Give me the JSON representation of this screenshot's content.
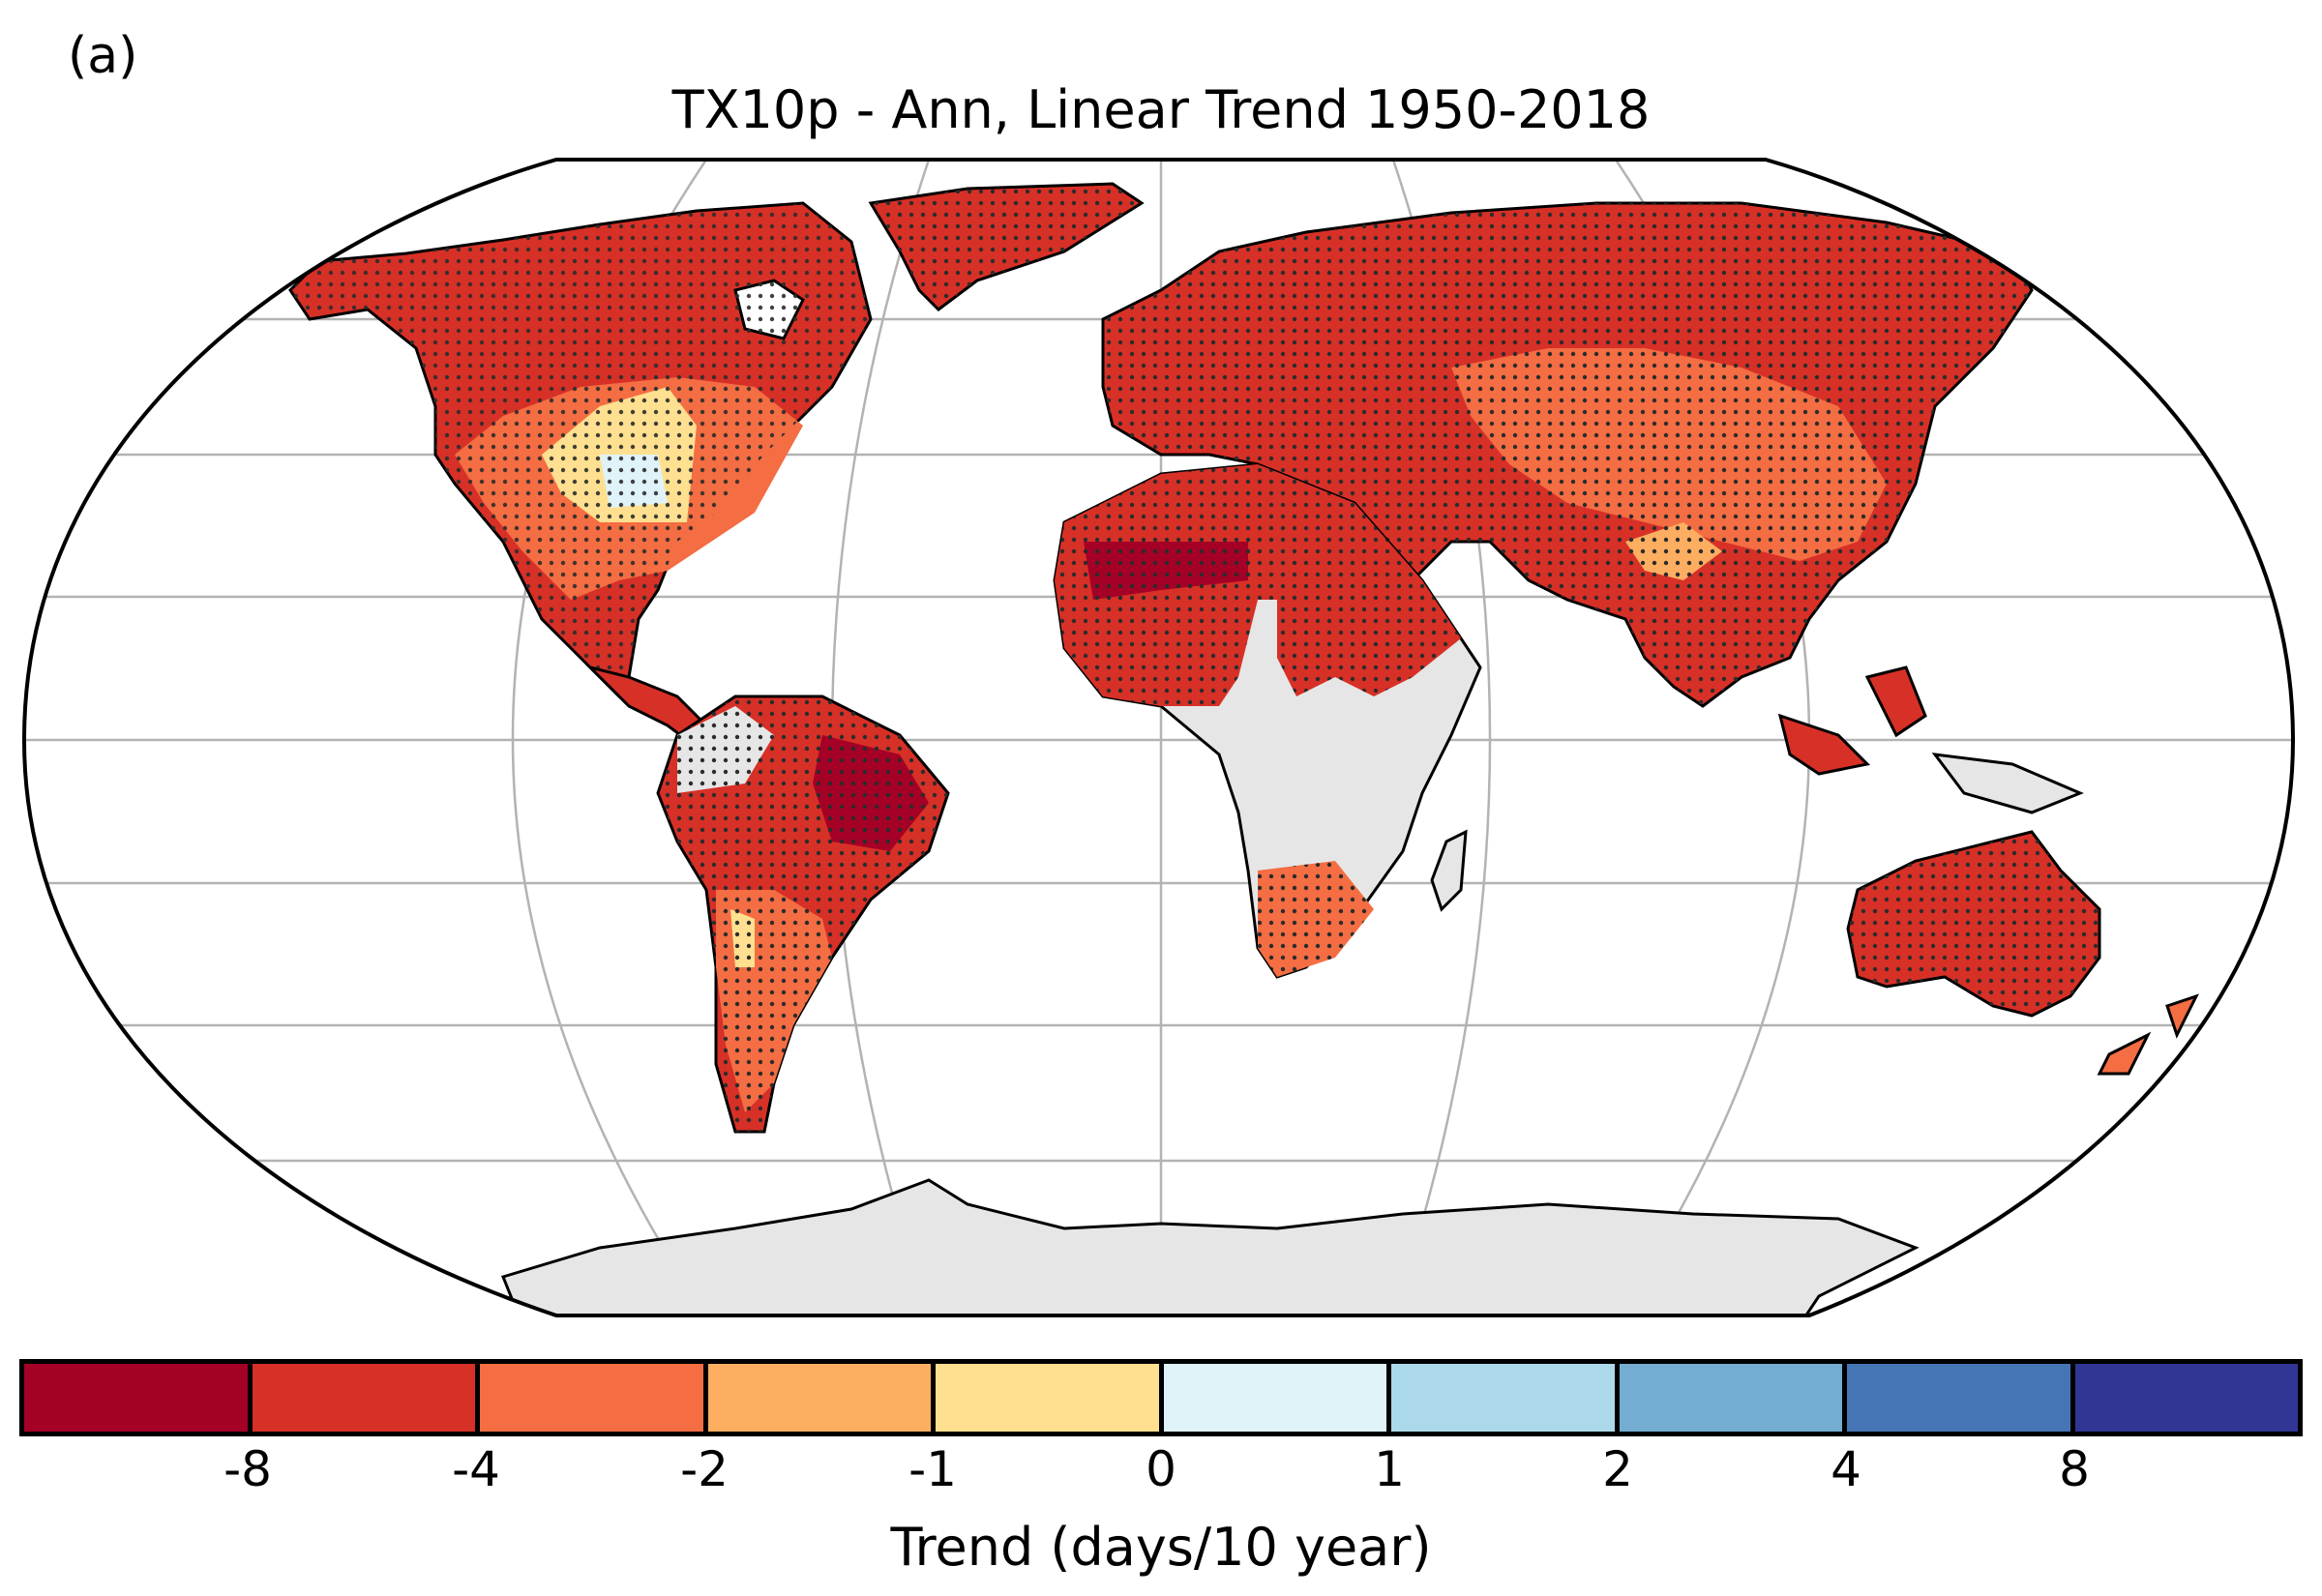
{
  "panel_label": "(a)",
  "title": "TX10p - Ann, Linear Trend 1950-2018",
  "colorbar": {
    "label": "Trend (days/10 year)",
    "ticks": [
      "-8",
      "-4",
      "-2",
      "-1",
      "0",
      "1",
      "2",
      "4",
      "8"
    ],
    "bins": [
      {
        "range": "< -8",
        "color": "#a50026"
      },
      {
        "range": "-8 to -4",
        "color": "#d73027"
      },
      {
        "range": "-4 to -2",
        "color": "#f46d43"
      },
      {
        "range": "-2 to -1",
        "color": "#fdae61"
      },
      {
        "range": "-1 to 0",
        "color": "#fee090"
      },
      {
        "range": "0 to 1",
        "color": "#e0f3f8"
      },
      {
        "range": "1 to 2",
        "color": "#abd9e9"
      },
      {
        "range": "2 to 4",
        "color": "#74add1"
      },
      {
        "range": "4 to 8",
        "color": "#4575b4"
      },
      {
        "range": "> 8",
        "color": "#313695"
      }
    ]
  },
  "map": {
    "projection": "Robinson",
    "stippling": "dots mark significant trends",
    "no_data_color": "#e6e6e6",
    "regions": [
      {
        "name": "North America",
        "trend_bin": "-8 to -4"
      },
      {
        "name": "US Midwest",
        "trend_bin": "-1 to 0"
      },
      {
        "name": "US Midwest core",
        "trend_bin": "0 to 1"
      },
      {
        "name": "Greenland",
        "trend_bin": "-8 to -4"
      },
      {
        "name": "Europe & Russia",
        "trend_bin": "-8 to -4"
      },
      {
        "name": "Central Asia",
        "trend_bin": "-4 to -2"
      },
      {
        "name": "North Africa",
        "trend_bin": "-8 to -4"
      },
      {
        "name": "Sahara core",
        "trend_bin": "< -8"
      },
      {
        "name": "Central Africa",
        "trend_bin": "no data"
      },
      {
        "name": "Southern Africa",
        "trend_bin": "-4 to -2"
      },
      {
        "name": "South America",
        "trend_bin": "-8 to -4"
      },
      {
        "name": "NE Brazil",
        "trend_bin": "< -8"
      },
      {
        "name": "Southern South America",
        "trend_bin": "-4 to -2"
      },
      {
        "name": "India",
        "trend_bin": "-8 to -4"
      },
      {
        "name": "Australia",
        "trend_bin": "-8 to -4"
      },
      {
        "name": "Antarctica",
        "trend_bin": "no data"
      }
    ]
  }
}
